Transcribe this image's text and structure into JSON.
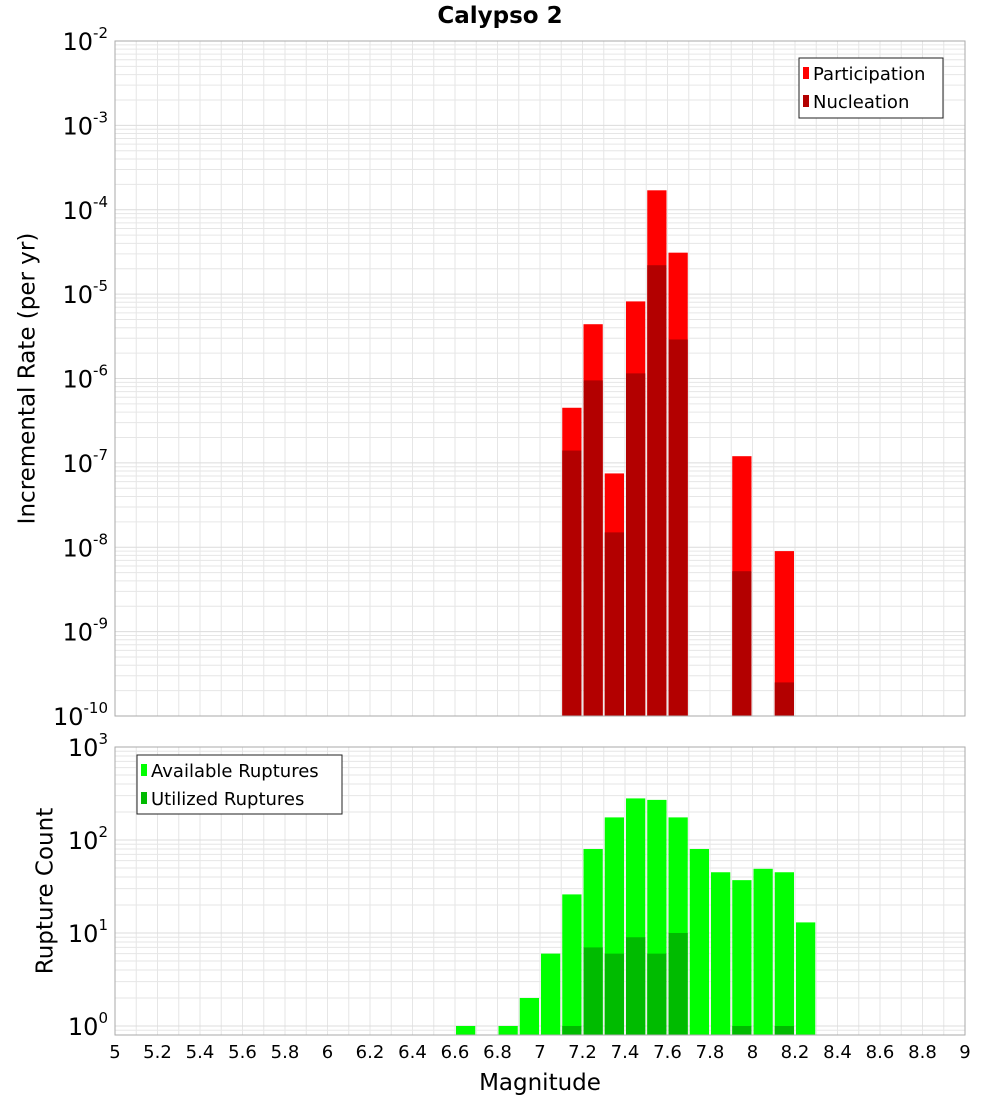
{
  "title": "Calypso 2",
  "x_axis": {
    "label": "Magnitude",
    "ticks": [
      "5",
      "5.2",
      "5.4",
      "5.6",
      "5.8",
      "6",
      "6.2",
      "6.4",
      "6.6",
      "6.8",
      "7",
      "7.2",
      "7.4",
      "7.6",
      "7.8",
      "8",
      "8.2",
      "8.4",
      "8.6",
      "8.8",
      "9"
    ]
  },
  "colors": {
    "participation": "#ff0000",
    "nucleation": "#b30000",
    "available": "#00ff00",
    "utilized": "#00bb00",
    "grid": "#e6e6e6",
    "frame": "#aaaaaa"
  },
  "chart_data": [
    {
      "type": "bar",
      "panel": "top",
      "scale": "log",
      "xlabel": "Magnitude",
      "ylabel": "Incremental Rate (per yr)",
      "xlim": [
        5,
        9
      ],
      "ylim": [
        1e-10,
        0.01
      ],
      "grid": true,
      "legend_position": "top-right",
      "bar_width": 0.1,
      "y_ticks": [
        {
          "base": "10",
          "exp": "-10"
        },
        {
          "base": "10",
          "exp": "-9"
        },
        {
          "base": "10",
          "exp": "-8"
        },
        {
          "base": "10",
          "exp": "-7"
        },
        {
          "base": "10",
          "exp": "-6"
        },
        {
          "base": "10",
          "exp": "-5"
        },
        {
          "base": "10",
          "exp": "-4"
        },
        {
          "base": "10",
          "exp": "-3"
        },
        {
          "base": "10",
          "exp": "-2"
        }
      ],
      "series": [
        {
          "name": "Participation",
          "color": "#ff0000",
          "x": [
            7.15,
            7.25,
            7.35,
            7.45,
            7.55,
            7.65,
            7.95,
            8.15
          ],
          "values": [
            4.5e-07,
            4.4e-06,
            7.5e-08,
            8.2e-06,
            0.00017,
            3.1e-05,
            1.2e-07,
            9e-09
          ]
        },
        {
          "name": "Nucleation",
          "color": "#b30000",
          "x": [
            7.15,
            7.25,
            7.35,
            7.45,
            7.55,
            7.65,
            7.95,
            8.15
          ],
          "values": [
            1.4e-07,
            9.5e-07,
            1.5e-08,
            1.15e-06,
            2.2e-05,
            2.9e-06,
            5.2e-09,
            2.5e-10
          ]
        }
      ]
    },
    {
      "type": "bar",
      "panel": "bottom",
      "scale": "log",
      "xlabel": "Magnitude",
      "ylabel": "Rupture Count",
      "xlim": [
        5,
        9
      ],
      "ylim": [
        0.8,
        1000
      ],
      "grid": true,
      "legend_position": "top-left",
      "bar_width": 0.1,
      "y_ticks": [
        {
          "base": "10",
          "exp": "0"
        },
        {
          "base": "10",
          "exp": "1"
        },
        {
          "base": "10",
          "exp": "2"
        },
        {
          "base": "10",
          "exp": "3"
        }
      ],
      "series": [
        {
          "name": "Available Ruptures",
          "color": "#00ff00",
          "x": [
            6.65,
            6.85,
            6.95,
            7.05,
            7.15,
            7.25,
            7.35,
            7.45,
            7.55,
            7.65,
            7.75,
            7.85,
            7.95,
            8.05,
            8.15,
            8.25
          ],
          "values": [
            1,
            1,
            2,
            6,
            26,
            80,
            175,
            280,
            270,
            175,
            80,
            45,
            37,
            49,
            45,
            13
          ]
        },
        {
          "name": "Utilized Ruptures",
          "color": "#00bb00",
          "x": [
            7.15,
            7.25,
            7.35,
            7.45,
            7.55,
            7.65,
            7.95,
            8.15
          ],
          "values": [
            1,
            7,
            6,
            9,
            6,
            10,
            1,
            1
          ]
        }
      ]
    }
  ]
}
